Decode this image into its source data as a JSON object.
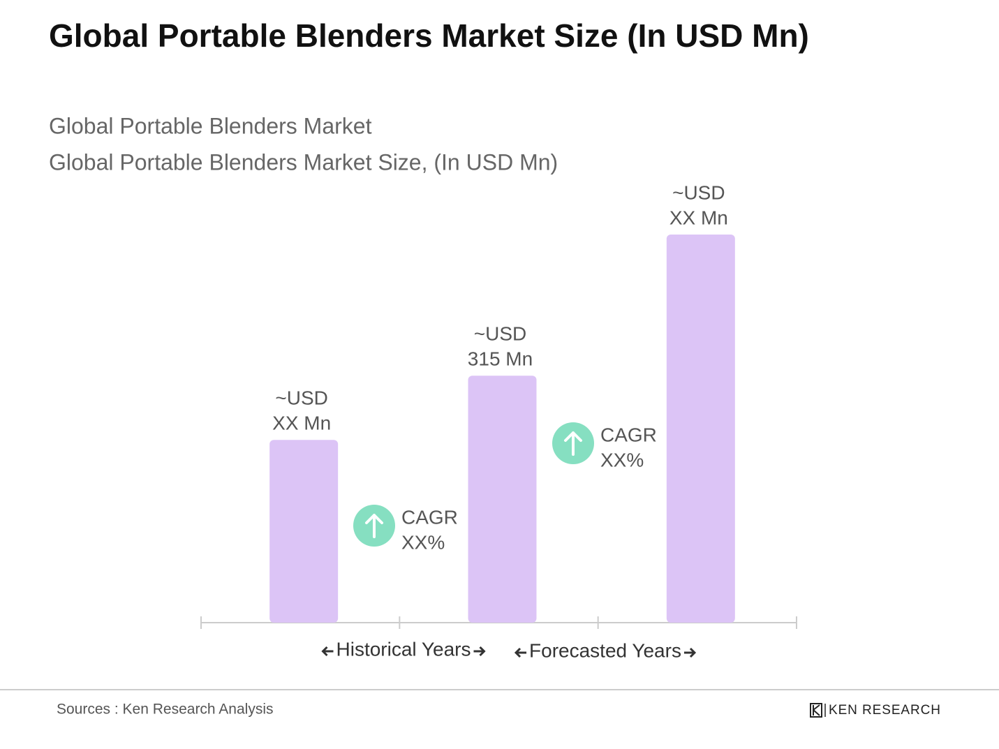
{
  "chart_data": {
    "type": "bar",
    "title": "Global Portable Blenders Market Size (In USD Mn)",
    "subtitle": [
      "Global Portable Blenders Market",
      "Global Portable Blenders Market Size, (In USD Mn)"
    ],
    "categories": [
      null,
      null,
      null
    ],
    "values": [
      233,
      315,
      495
    ],
    "value_labels": [
      [
        "~USD",
        "XX Mn"
      ],
      [
        "~USD",
        "315 Mn"
      ],
      [
        "~USD",
        "XX Mn"
      ]
    ],
    "color": "#dcc4f6",
    "ylim": [
      0,
      560
    ],
    "grid": false,
    "period_labels": [
      "Historical Years",
      "Forecasted Years"
    ],
    "annotations": [
      [
        "CAGR",
        "XX%"
      ],
      [
        "CAGR",
        "XX%"
      ]
    ],
    "annotation_color": "#86dfc1",
    "source": "Sources : Ken Research Analysis",
    "logo": "KEN RESEARCH"
  }
}
